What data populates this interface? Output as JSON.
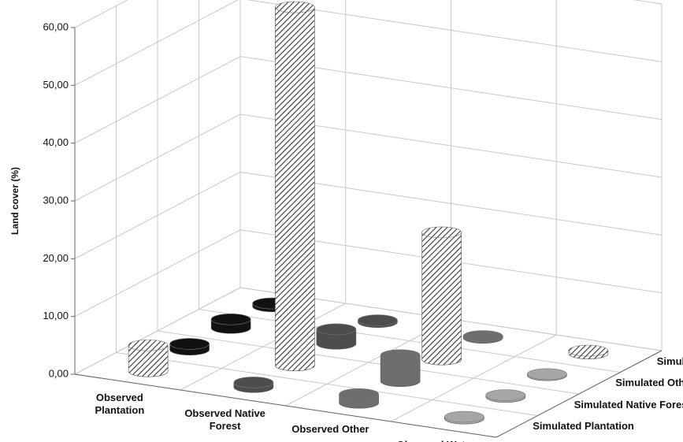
{
  "chart_data": {
    "type": "bar3d",
    "y_label": "Land cover (%)",
    "categories": [
      "Observed Plantation",
      "Observed Native Forest",
      "Observed Other",
      "Observed Water"
    ],
    "category_colors": [
      "#111111",
      "#4d4d4d",
      "#6e6e6e",
      "#a6a6a6"
    ],
    "diagonal_fill": "hatched",
    "series": [
      {
        "name": "Simulated Plantation",
        "values": [
          4.5,
          0.8,
          1.5,
          0.3
        ]
      },
      {
        "name": "Simulated Native Forest",
        "values": [
          1.0,
          62,
          4.5,
          0.3
        ]
      },
      {
        "name": "Simulated Other",
        "values": [
          1.5,
          2.5,
          22,
          0.2
        ]
      },
      {
        "name": "Simulated Water",
        "values": [
          0.5,
          0.3,
          0.3,
          0.5
        ]
      }
    ],
    "ylim": [
      0,
      60
    ],
    "yticks": [
      {
        "value": 0,
        "label": "0,00"
      },
      {
        "value": 10,
        "label": "10,00"
      },
      {
        "value": 20,
        "label": "20,00"
      },
      {
        "value": 30,
        "label": "30,00"
      },
      {
        "value": 40,
        "label": "40,00"
      },
      {
        "value": 50,
        "label": "50,00"
      },
      {
        "value": 60,
        "label": "60,00"
      }
    ],
    "grid": true
  }
}
